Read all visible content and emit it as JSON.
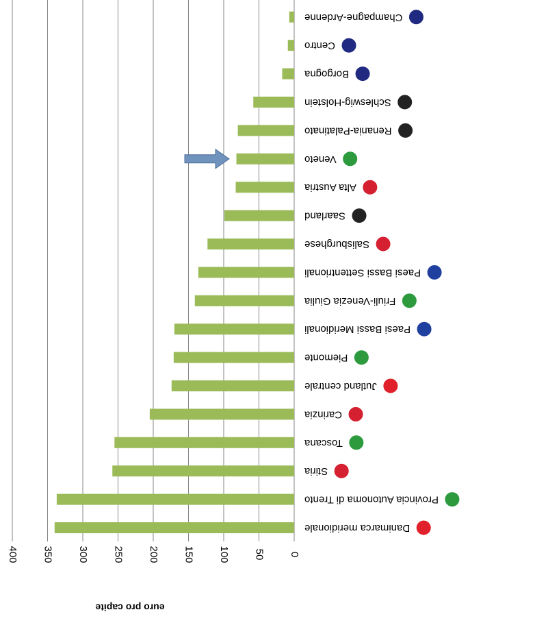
{
  "chart_data": {
    "type": "bar",
    "orientation": "horizontal",
    "x_label": "euro pro capite",
    "categories": [
      "Danimarca meridionale",
      "Provincia Autonoma di Trento",
      "Stiria",
      "Toscana",
      "Carinzia",
      "Jutland centrale",
      "Piemonte",
      "Paesi Bassi Meridionali",
      "Friuli-Venezia Giulia",
      "Paesi Bassi Settentrionali",
      "Salisburghese",
      "Saarland",
      "Alta Austria",
      "Veneto",
      "Renania-Palatinato",
      "Schleswig-Holstein",
      "Borgogna",
      "Centro",
      "Champagne-Ardenne"
    ],
    "values": [
      340,
      337,
      258,
      255,
      205,
      174,
      171,
      170,
      141,
      136,
      123,
      99,
      83,
      82,
      80,
      58,
      17,
      9,
      7
    ],
    "color": "#9bbb59",
    "xlim": [
      0,
      400
    ],
    "xticks": [
      0,
      50,
      100,
      150,
      200,
      250,
      300,
      350,
      400
    ],
    "grid": true
  }
}
